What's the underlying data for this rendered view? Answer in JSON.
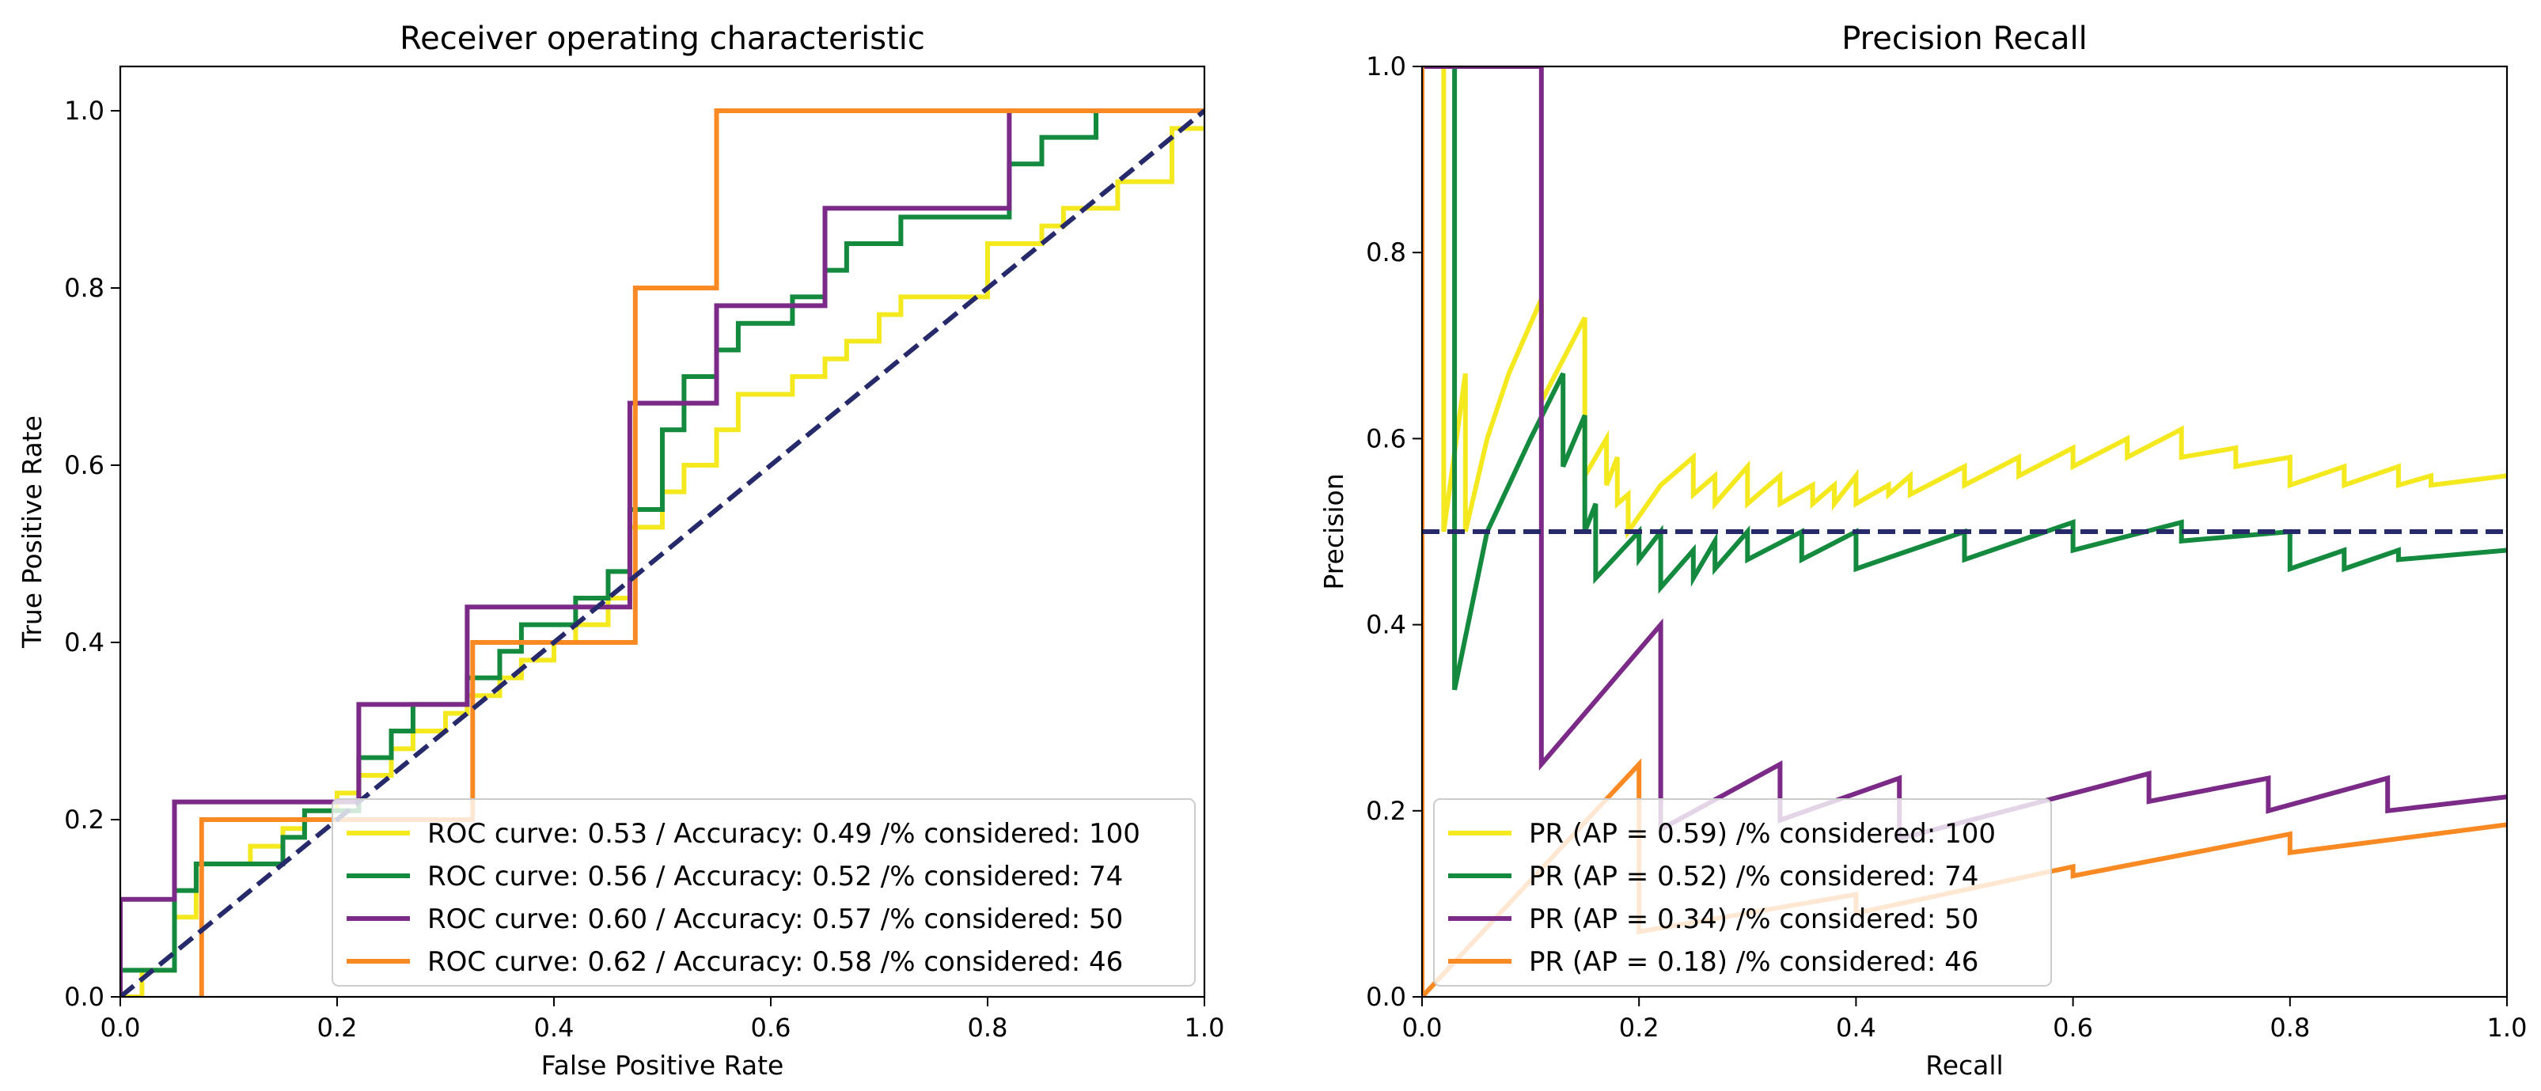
{
  "chart_data": [
    {
      "type": "line",
      "title": "Receiver operating characteristic",
      "xlabel": "False Positive Rate",
      "ylabel": "True Positive Rate",
      "xlim": [
        0,
        1
      ],
      "ylim": [
        0,
        1.05
      ],
      "xticks": [
        0.0,
        0.2,
        0.4,
        0.6,
        0.8,
        1.0
      ],
      "yticks": [
        0.0,
        0.2,
        0.4,
        0.6,
        0.8,
        1.0
      ],
      "xtick_labels": [
        "0.0",
        "0.2",
        "0.4",
        "0.6",
        "0.8",
        "1.0"
      ],
      "ytick_labels": [
        "0.0",
        "0.2",
        "0.4",
        "0.6",
        "0.8",
        "1.0"
      ],
      "legend_position": "lower right",
      "reference_line": {
        "x": [
          0,
          1
        ],
        "y": [
          0,
          1
        ],
        "color": "#262a6b"
      },
      "series": [
        {
          "name": "ROC curve: 0.53 / Accuracy: 0.49 /% considered: 100",
          "color": "#f4e91e",
          "x": [
            0,
            0.02,
            0.02,
            0.05,
            0.05,
            0.07,
            0.07,
            0.12,
            0.12,
            0.15,
            0.15,
            0.17,
            0.17,
            0.2,
            0.2,
            0.22,
            0.22,
            0.25,
            0.25,
            0.27,
            0.27,
            0.3,
            0.3,
            0.32,
            0.32,
            0.35,
            0.35,
            0.37,
            0.37,
            0.4,
            0.4,
            0.42,
            0.42,
            0.45,
            0.45,
            0.47,
            0.47,
            0.5,
            0.5,
            0.52,
            0.52,
            0.55,
            0.55,
            0.57,
            0.57,
            0.62,
            0.62,
            0.65,
            0.65,
            0.67,
            0.67,
            0.7,
            0.7,
            0.72,
            0.72,
            0.8,
            0.8,
            0.85,
            0.85,
            0.87,
            0.87,
            0.92,
            0.92,
            0.97,
            0.97,
            1.0
          ],
          "y": [
            0,
            0,
            0.03,
            0.03,
            0.09,
            0.09,
            0.15,
            0.15,
            0.17,
            0.17,
            0.19,
            0.19,
            0.21,
            0.21,
            0.23,
            0.23,
            0.25,
            0.25,
            0.28,
            0.28,
            0.3,
            0.3,
            0.32,
            0.32,
            0.34,
            0.34,
            0.36,
            0.36,
            0.38,
            0.38,
            0.4,
            0.4,
            0.42,
            0.42,
            0.45,
            0.45,
            0.53,
            0.53,
            0.57,
            0.57,
            0.6,
            0.6,
            0.64,
            0.64,
            0.68,
            0.68,
            0.7,
            0.7,
            0.72,
            0.72,
            0.74,
            0.74,
            0.77,
            0.77,
            0.79,
            0.79,
            0.85,
            0.85,
            0.87,
            0.87,
            0.89,
            0.89,
            0.92,
            0.92,
            0.98,
            0.98
          ]
        },
        {
          "name": "ROC curve: 0.56 / Accuracy: 0.52 /% considered: 74",
          "color": "#138a3e",
          "x": [
            0,
            0,
            0.05,
            0.05,
            0.07,
            0.07,
            0.15,
            0.15,
            0.17,
            0.17,
            0.22,
            0.22,
            0.25,
            0.25,
            0.27,
            0.27,
            0.32,
            0.32,
            0.35,
            0.35,
            0.37,
            0.37,
            0.42,
            0.42,
            0.45,
            0.45,
            0.47,
            0.47,
            0.5,
            0.5,
            0.52,
            0.52,
            0.55,
            0.55,
            0.57,
            0.57,
            0.62,
            0.62,
            0.65,
            0.65,
            0.67,
            0.67,
            0.72,
            0.72,
            0.82,
            0.82,
            0.85,
            0.85,
            0.9,
            0.9,
            1.0
          ],
          "y": [
            0,
            0.03,
            0.03,
            0.12,
            0.12,
            0.15,
            0.15,
            0.18,
            0.18,
            0.21,
            0.21,
            0.27,
            0.27,
            0.3,
            0.3,
            0.33,
            0.33,
            0.36,
            0.36,
            0.39,
            0.39,
            0.42,
            0.42,
            0.45,
            0.45,
            0.48,
            0.48,
            0.55,
            0.55,
            0.64,
            0.64,
            0.7,
            0.7,
            0.73,
            0.73,
            0.76,
            0.76,
            0.79,
            0.79,
            0.82,
            0.82,
            0.85,
            0.85,
            0.88,
            0.88,
            0.94,
            0.94,
            0.97,
            0.97,
            1.0,
            1.0
          ]
        },
        {
          "name": "ROC curve: 0.60 / Accuracy: 0.57 /% considered: 50",
          "color": "#7b2a87",
          "x": [
            0,
            0,
            0.05,
            0.05,
            0.22,
            0.22,
            0.32,
            0.32,
            0.47,
            0.47,
            0.55,
            0.55,
            0.65,
            0.65,
            0.82,
            0.82,
            1.0
          ],
          "y": [
            0,
            0.11,
            0.11,
            0.22,
            0.22,
            0.33,
            0.33,
            0.44,
            0.44,
            0.67,
            0.67,
            0.78,
            0.78,
            0.89,
            0.89,
            1.0,
            1.0
          ]
        },
        {
          "name": "ROC curve: 0.62 / Accuracy: 0.58 /% considered: 46",
          "color": "#f98a23",
          "x": [
            0.075,
            0.075,
            0.325,
            0.325,
            0.475,
            0.475,
            0.55,
            0.55,
            1.0
          ],
          "y": [
            0,
            0.2,
            0.2,
            0.4,
            0.4,
            0.8,
            0.8,
            1.0,
            1.0
          ]
        }
      ]
    },
    {
      "type": "line",
      "title": "Precision Recall",
      "xlabel": "Recall",
      "ylabel": "Precision",
      "xlim": [
        0,
        1
      ],
      "ylim": [
        0,
        1.0
      ],
      "xticks": [
        0.0,
        0.2,
        0.4,
        0.6,
        0.8,
        1.0
      ],
      "yticks": [
        0.0,
        0.2,
        0.4,
        0.6,
        0.8,
        1.0
      ],
      "xtick_labels": [
        "0.0",
        "0.2",
        "0.4",
        "0.6",
        "0.8",
        "1.0"
      ],
      "ytick_labels": [
        "0.0",
        "0.2",
        "0.4",
        "0.6",
        "0.8",
        "1.0"
      ],
      "legend_position": "lower left",
      "reference_line": {
        "x": [
          0,
          1
        ],
        "y": [
          0.5,
          0.5
        ],
        "color": "#262a6b"
      },
      "series": [
        {
          "name": "PR (AP = 0.59) /% considered: 100",
          "color": "#f4e91e",
          "x": [
            0.0,
            0.01,
            0.02,
            0.02,
            0.04,
            0.04,
            0.06,
            0.08,
            0.11,
            0.11,
            0.15,
            0.15,
            0.17,
            0.17,
            0.18,
            0.18,
            0.19,
            0.19,
            0.22,
            0.25,
            0.25,
            0.27,
            0.27,
            0.3,
            0.3,
            0.33,
            0.33,
            0.36,
            0.36,
            0.38,
            0.38,
            0.4,
            0.4,
            0.43,
            0.43,
            0.45,
            0.45,
            0.5,
            0.5,
            0.55,
            0.55,
            0.6,
            0.6,
            0.65,
            0.65,
            0.7,
            0.7,
            0.75,
            0.75,
            0.8,
            0.8,
            0.85,
            0.85,
            0.9,
            0.9,
            0.93,
            0.93,
            1.0
          ],
          "y": [
            1.0,
            1.0,
            1.0,
            0.5,
            0.67,
            0.5,
            0.6,
            0.67,
            0.75,
            0.64,
            0.73,
            0.56,
            0.6,
            0.55,
            0.58,
            0.53,
            0.54,
            0.5,
            0.55,
            0.58,
            0.54,
            0.56,
            0.53,
            0.57,
            0.53,
            0.56,
            0.53,
            0.55,
            0.53,
            0.55,
            0.53,
            0.56,
            0.53,
            0.55,
            0.54,
            0.56,
            0.54,
            0.57,
            0.55,
            0.58,
            0.56,
            0.59,
            0.57,
            0.6,
            0.58,
            0.61,
            0.58,
            0.59,
            0.57,
            0.58,
            0.55,
            0.57,
            0.55,
            0.57,
            0.55,
            0.56,
            0.55,
            0.56
          ]
        },
        {
          "name": "PR (AP = 0.52) /% considered: 74",
          "color": "#138a3e",
          "x": [
            0.03,
            0.03,
            0.03,
            0.06,
            0.1,
            0.13,
            0.13,
            0.15,
            0.15,
            0.16,
            0.16,
            0.2,
            0.2,
            0.22,
            0.22,
            0.25,
            0.25,
            0.27,
            0.27,
            0.3,
            0.3,
            0.35,
            0.35,
            0.4,
            0.4,
            0.5,
            0.5,
            0.6,
            0.6,
            0.7,
            0.7,
            0.8,
            0.8,
            0.85,
            0.85,
            0.9,
            0.9,
            1.0
          ],
          "y": [
            0.33,
            1.0,
            0.33,
            0.5,
            0.6,
            0.67,
            0.57,
            0.625,
            0.5,
            0.53,
            0.45,
            0.5,
            0.47,
            0.5,
            0.44,
            0.48,
            0.45,
            0.49,
            0.46,
            0.5,
            0.47,
            0.5,
            0.47,
            0.5,
            0.46,
            0.5,
            0.47,
            0.51,
            0.48,
            0.51,
            0.49,
            0.5,
            0.46,
            0.48,
            0.46,
            0.48,
            0.47,
            0.48
          ]
        },
        {
          "name": "PR (AP = 0.34) /% considered: 50",
          "color": "#7b2a87",
          "x": [
            0.0,
            0.11,
            0.11,
            0.22,
            0.22,
            0.33,
            0.33,
            0.44,
            0.44,
            0.67,
            0.67,
            0.78,
            0.78,
            0.89,
            0.89,
            1.0
          ],
          "y": [
            1.0,
            1.0,
            0.25,
            0.4,
            0.18,
            0.25,
            0.19,
            0.235,
            0.17,
            0.24,
            0.21,
            0.235,
            0.2,
            0.235,
            0.2,
            0.215
          ]
        },
        {
          "name": "PR (AP = 0.18) /% considered: 46",
          "color": "#f98a23",
          "x": [
            0.0,
            0.0,
            0.0,
            0.2,
            0.2,
            0.4,
            0.4,
            0.6,
            0.6,
            0.8,
            0.8,
            1.0
          ],
          "y": [
            1.0,
            0.0,
            0.0,
            0.25,
            0.07,
            0.11,
            0.09,
            0.14,
            0.13,
            0.175,
            0.155,
            0.185
          ]
        }
      ]
    }
  ]
}
